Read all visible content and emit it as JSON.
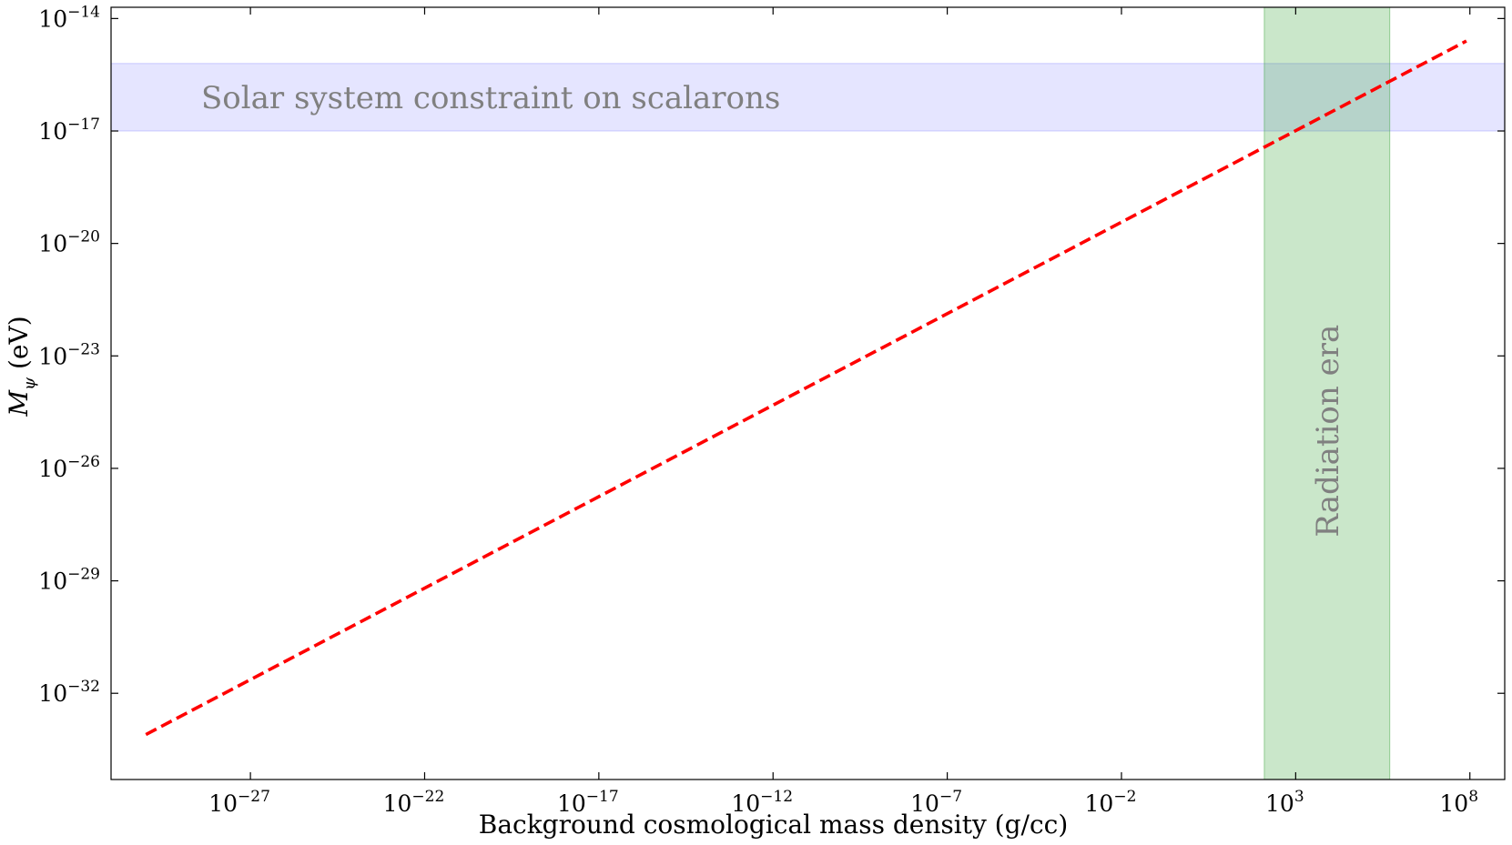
{
  "chart_data": {
    "type": "line",
    "title": "",
    "xlabel": "Background cosmological mass density (g/cc)",
    "ylabel_main": "M",
    "ylabel_sub": "ψ",
    "ylabel_unit": " (eV)",
    "xscale": "log",
    "yscale": "log",
    "xlim_exp": [
      -31,
      9
    ],
    "ylim_exp": [
      -34.3,
      -13.7
    ],
    "x_ticks": [
      {
        "base": "10",
        "exp": "−27",
        "value": -27
      },
      {
        "base": "10",
        "exp": "−22",
        "value": -22
      },
      {
        "base": "10",
        "exp": "−17",
        "value": -17
      },
      {
        "base": "10",
        "exp": "−12",
        "value": -12
      },
      {
        "base": "10",
        "exp": "−7",
        "value": -7
      },
      {
        "base": "10",
        "exp": "−2",
        "value": -2
      },
      {
        "base": "10",
        "exp": "3",
        "value": 3
      },
      {
        "base": "10",
        "exp": "8",
        "value": 8
      }
    ],
    "y_ticks": [
      {
        "base": "10",
        "exp": "−14",
        "value": -14
      },
      {
        "base": "10",
        "exp": "−17",
        "value": -17
      },
      {
        "base": "10",
        "exp": "−20",
        "value": -20
      },
      {
        "base": "10",
        "exp": "−23",
        "value": -23
      },
      {
        "base": "10",
        "exp": "−26",
        "value": -26
      },
      {
        "base": "10",
        "exp": "−29",
        "value": -29
      },
      {
        "base": "10",
        "exp": "−32",
        "value": -32
      }
    ],
    "series": [
      {
        "style": "dashed",
        "color": "#ff0000",
        "x_log10": [
          -30.0,
          7.9
        ],
        "y_log10": [
          -33.1,
          -14.6
        ]
      }
    ],
    "bands": [
      {
        "orientation": "horizontal",
        "label": "Solar system constraint on scalarons",
        "y_log10": [
          -17.0,
          -15.2
        ],
        "color": "#7b7bff",
        "opacity": 0.2
      },
      {
        "orientation": "vertical",
        "label": "Radiation era",
        "x_log10": [
          2.1,
          5.7
        ],
        "color": "#2ca02c",
        "opacity": 0.25
      }
    ],
    "grid": false,
    "legend": "none"
  }
}
